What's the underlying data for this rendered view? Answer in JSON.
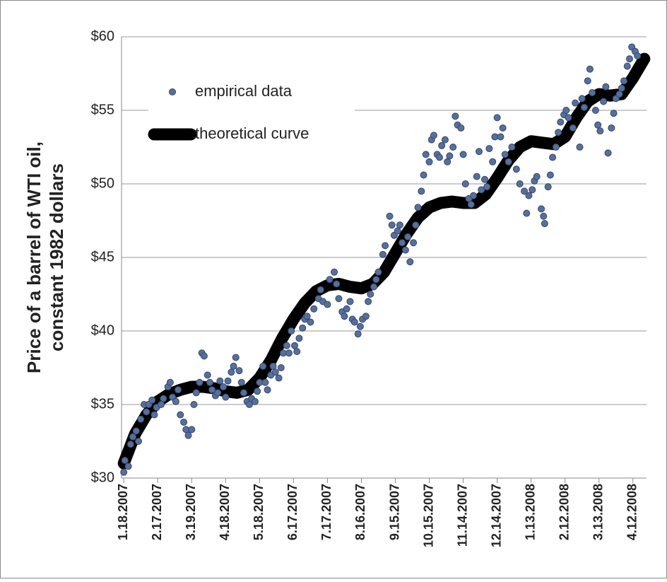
{
  "chart_data": {
    "type": "scatter",
    "ylabel": [
      "Price of a barrel of WTI oil,",
      "constant 1982 dollars"
    ],
    "xlim": [
      "2007-01-16",
      "2008-04-24"
    ],
    "xticks": [
      {
        "value": "2007-01-18",
        "label": "1.18.2007"
      },
      {
        "value": "2007-02-17",
        "label": "2.17.2007"
      },
      {
        "value": "2007-03-19",
        "label": "3.19.2007"
      },
      {
        "value": "2007-04-18",
        "label": "4.18.2007"
      },
      {
        "value": "2007-05-18",
        "label": "5.18.2007"
      },
      {
        "value": "2007-06-17",
        "label": "6.17.2007"
      },
      {
        "value": "2007-07-17",
        "label": "7.17.2007"
      },
      {
        "value": "2007-08-16",
        "label": "8.16.2007"
      },
      {
        "value": "2007-09-15",
        "label": "9.15.2007"
      },
      {
        "value": "2007-10-15",
        "label": "10.15.2007"
      },
      {
        "value": "2007-11-14",
        "label": "11.14.2007"
      },
      {
        "value": "2007-12-14",
        "label": "12.14.2007"
      },
      {
        "value": "2008-01-13",
        "label": "1.13.2008"
      },
      {
        "value": "2008-02-12",
        "label": "2.12.2008"
      },
      {
        "value": "2008-03-13",
        "label": "3.13.2008"
      },
      {
        "value": "2008-04-12",
        "label": "4.12.2008"
      }
    ],
    "ylim": [
      30,
      60
    ],
    "yticks": [
      {
        "value": 30,
        "label": "$30"
      },
      {
        "value": 35,
        "label": "$35"
      },
      {
        "value": 40,
        "label": "$40"
      },
      {
        "value": 45,
        "label": "$45"
      },
      {
        "value": 50,
        "label": "$50"
      },
      {
        "value": 55,
        "label": "$55"
      },
      {
        "value": 60,
        "label": "$60"
      }
    ],
    "grid": true,
    "legend": "upper left",
    "series": [
      {
        "name": "empirical data",
        "mode": "markers",
        "color": "#56709a",
        "x": [
          "2007-01-18",
          "2007-01-19",
          "2007-01-22",
          "2007-01-24",
          "2007-01-26",
          "2007-01-29",
          "2007-01-31",
          "2007-02-02",
          "2007-02-05",
          "2007-02-07",
          "2007-02-09",
          "2007-02-12",
          "2007-02-14",
          "2007-02-16",
          "2007-02-20",
          "2007-02-22",
          "2007-02-26",
          "2007-02-28",
          "2007-03-02",
          "2007-03-05",
          "2007-03-07",
          "2007-03-09",
          "2007-03-12",
          "2007-03-14",
          "2007-03-16",
          "2007-03-19",
          "2007-03-21",
          "2007-03-23",
          "2007-03-26",
          "2007-03-28",
          "2007-03-30",
          "2007-04-02",
          "2007-04-04",
          "2007-04-06",
          "2007-04-09",
          "2007-04-11",
          "2007-04-13",
          "2007-04-16",
          "2007-04-18",
          "2007-04-20",
          "2007-04-23",
          "2007-04-25",
          "2007-04-27",
          "2007-04-30",
          "2007-05-02",
          "2007-05-04",
          "2007-05-07",
          "2007-05-09",
          "2007-05-11",
          "2007-05-14",
          "2007-05-16",
          "2007-05-18",
          "2007-05-21",
          "2007-05-23",
          "2007-05-25",
          "2007-05-28",
          "2007-05-30",
          "2007-06-01",
          "2007-06-04",
          "2007-06-06",
          "2007-06-08",
          "2007-06-11",
          "2007-06-13",
          "2007-06-15",
          "2007-06-18",
          "2007-06-20",
          "2007-06-22",
          "2007-06-25",
          "2007-06-27",
          "2007-06-29",
          "2007-07-02",
          "2007-07-05",
          "2007-07-09",
          "2007-07-11",
          "2007-07-13",
          "2007-07-17",
          "2007-07-19",
          "2007-07-23",
          "2007-07-25",
          "2007-07-27",
          "2007-07-30",
          "2007-08-01",
          "2007-08-03",
          "2007-08-06",
          "2007-08-08",
          "2007-08-10",
          "2007-08-13",
          "2007-08-15",
          "2007-08-17",
          "2007-08-20",
          "2007-08-22",
          "2007-08-24",
          "2007-08-27",
          "2007-08-29",
          "2007-08-31",
          "2007-09-04",
          "2007-09-06",
          "2007-09-10",
          "2007-09-12",
          "2007-09-14",
          "2007-09-17",
          "2007-09-19",
          "2007-09-21",
          "2007-09-24",
          "2007-09-26",
          "2007-09-28",
          "2007-10-01",
          "2007-10-03",
          "2007-10-05",
          "2007-10-08",
          "2007-10-10",
          "2007-10-12",
          "2007-10-15",
          "2007-10-17",
          "2007-10-19",
          "2007-10-22",
          "2007-10-24",
          "2007-10-26",
          "2007-10-29",
          "2007-10-31",
          "2007-11-02",
          "2007-11-05",
          "2007-11-07",
          "2007-11-09",
          "2007-11-12",
          "2007-11-14",
          "2007-11-16",
          "2007-11-19",
          "2007-11-21",
          "2007-11-23",
          "2007-11-26",
          "2007-11-28",
          "2007-11-30",
          "2007-12-03",
          "2007-12-05",
          "2007-12-07",
          "2007-12-10",
          "2007-12-12",
          "2007-12-14",
          "2007-12-17",
          "2007-12-19",
          "2007-12-21",
          "2007-12-24",
          "2007-12-27",
          "2007-12-31",
          "2008-01-03",
          "2008-01-07",
          "2008-01-09",
          "2008-01-11",
          "2008-01-14",
          "2008-01-16",
          "2008-01-18",
          "2008-01-22",
          "2008-01-24",
          "2008-01-25",
          "2008-01-28",
          "2008-01-30",
          "2008-02-01",
          "2008-02-04",
          "2008-02-06",
          "2008-02-08",
          "2008-02-11",
          "2008-02-13",
          "2008-02-15",
          "2008-02-19",
          "2008-02-21",
          "2008-02-25",
          "2008-02-27",
          "2008-02-29",
          "2008-03-03",
          "2008-03-05",
          "2008-03-07",
          "2008-03-10",
          "2008-03-12",
          "2008-03-14",
          "2008-03-17",
          "2008-03-19",
          "2008-03-21",
          "2008-03-24",
          "2008-03-26",
          "2008-03-28",
          "2008-03-31",
          "2008-04-02",
          "2008-04-04",
          "2008-04-07",
          "2008-04-09",
          "2008-04-11",
          "2008-04-14",
          "2008-04-16"
        ],
        "values": [
          30.4,
          31.2,
          30.8,
          32.3,
          32.8,
          33.2,
          32.5,
          34.0,
          35.0,
          34.5,
          35.0,
          35.3,
          34.3,
          34.8,
          35.0,
          35.4,
          36.2,
          36.5,
          35.5,
          35.2,
          36.0,
          34.3,
          33.8,
          33.3,
          32.9,
          33.3,
          35.0,
          35.8,
          36.5,
          38.5,
          38.3,
          37.0,
          36.5,
          36.0,
          35.6,
          35.8,
          36.6,
          36.2,
          35.5,
          36.6,
          37.2,
          37.6,
          38.2,
          37.3,
          36.5,
          35.8,
          35.2,
          35.0,
          35.4,
          35.2,
          35.9,
          36.5,
          37.6,
          36.5,
          36.0,
          37.0,
          37.6,
          37.2,
          36.8,
          37.5,
          38.5,
          39.0,
          38.5,
          40.0,
          39.0,
          38.6,
          39.5,
          40.2,
          40.8,
          41.0,
          40.6,
          41.5,
          42.2,
          42.8,
          42.0,
          41.8,
          43.5,
          44.0,
          43.2,
          42.2,
          41.3,
          41.0,
          41.5,
          42.0,
          40.8,
          40.6,
          39.8,
          40.3,
          40.8,
          41.0,
          42.0,
          42.5,
          43.0,
          43.5,
          44.0,
          45.2,
          45.8,
          47.8,
          47.2,
          46.5,
          46.8,
          47.2,
          46.0,
          45.5,
          46.4,
          44.7,
          46.0,
          47.2,
          48.4,
          49.5,
          50.6,
          52.0,
          51.5,
          53.0,
          53.3,
          52.0,
          51.8,
          52.6,
          53.0,
          51.5,
          51.9,
          52.5,
          54.6,
          54.0,
          53.8,
          52.0,
          50.0,
          49.0,
          48.6,
          49.2,
          50.5,
          52.2,
          49.6,
          50.3,
          49.8,
          52.4,
          51.5,
          53.2,
          54.5,
          53.2,
          53.8,
          52.0,
          51.5,
          52.5,
          51.0,
          50.0,
          49.5,
          48.0,
          49.2,
          49.6,
          50.2,
          50.5,
          48.3,
          47.8,
          47.3,
          49.8,
          50.6,
          51.8,
          52.5,
          53.5,
          54.2,
          54.7,
          55.0,
          54.5,
          53.8,
          55.5,
          52.5,
          55.8,
          55.2,
          57.0,
          57.8,
          56.2,
          55.0,
          54.0,
          53.6,
          55.6,
          56.6,
          52.1,
          53.8,
          54.8,
          55.8,
          56.1,
          56.5,
          57.0,
          58.0,
          58.5,
          59.3,
          59.0,
          58.7
        ]
      },
      {
        "name": "theoretical curve",
        "mode": "line",
        "color": "#000000",
        "x": [
          "2007-01-18",
          "2007-01-28",
          "2007-02-07",
          "2007-02-17",
          "2007-02-27",
          "2007-03-09",
          "2007-03-19",
          "2007-03-29",
          "2007-04-08",
          "2007-04-18",
          "2007-04-28",
          "2007-05-08",
          "2007-05-18",
          "2007-05-28",
          "2007-06-07",
          "2007-06-17",
          "2007-06-27",
          "2007-07-07",
          "2007-07-17",
          "2007-07-27",
          "2007-08-06",
          "2007-08-16",
          "2007-08-26",
          "2007-09-05",
          "2007-09-15",
          "2007-09-25",
          "2007-10-05",
          "2007-10-15",
          "2007-10-25",
          "2007-11-04",
          "2007-11-14",
          "2007-11-24",
          "2007-12-04",
          "2007-12-14",
          "2007-12-24",
          "2008-01-03",
          "2008-01-13",
          "2008-01-23",
          "2008-02-02",
          "2008-02-12",
          "2008-02-22",
          "2008-03-03",
          "2008-03-13",
          "2008-03-23",
          "2008-04-02",
          "2008-04-12",
          "2008-04-22"
        ],
        "values": [
          31.0,
          33.0,
          34.3,
          35.2,
          35.7,
          36.0,
          36.2,
          36.2,
          36.1,
          35.9,
          35.8,
          36.0,
          36.8,
          38.0,
          39.5,
          40.8,
          41.9,
          42.7,
          43.1,
          43.2,
          43.0,
          42.9,
          43.2,
          44.0,
          45.3,
          46.6,
          47.7,
          48.4,
          48.7,
          48.8,
          48.7,
          48.7,
          49.3,
          50.4,
          51.6,
          52.5,
          52.9,
          52.8,
          52.7,
          53.2,
          54.5,
          55.6,
          56.1,
          56.0,
          56.1,
          57.2,
          58.5
        ]
      }
    ]
  }
}
